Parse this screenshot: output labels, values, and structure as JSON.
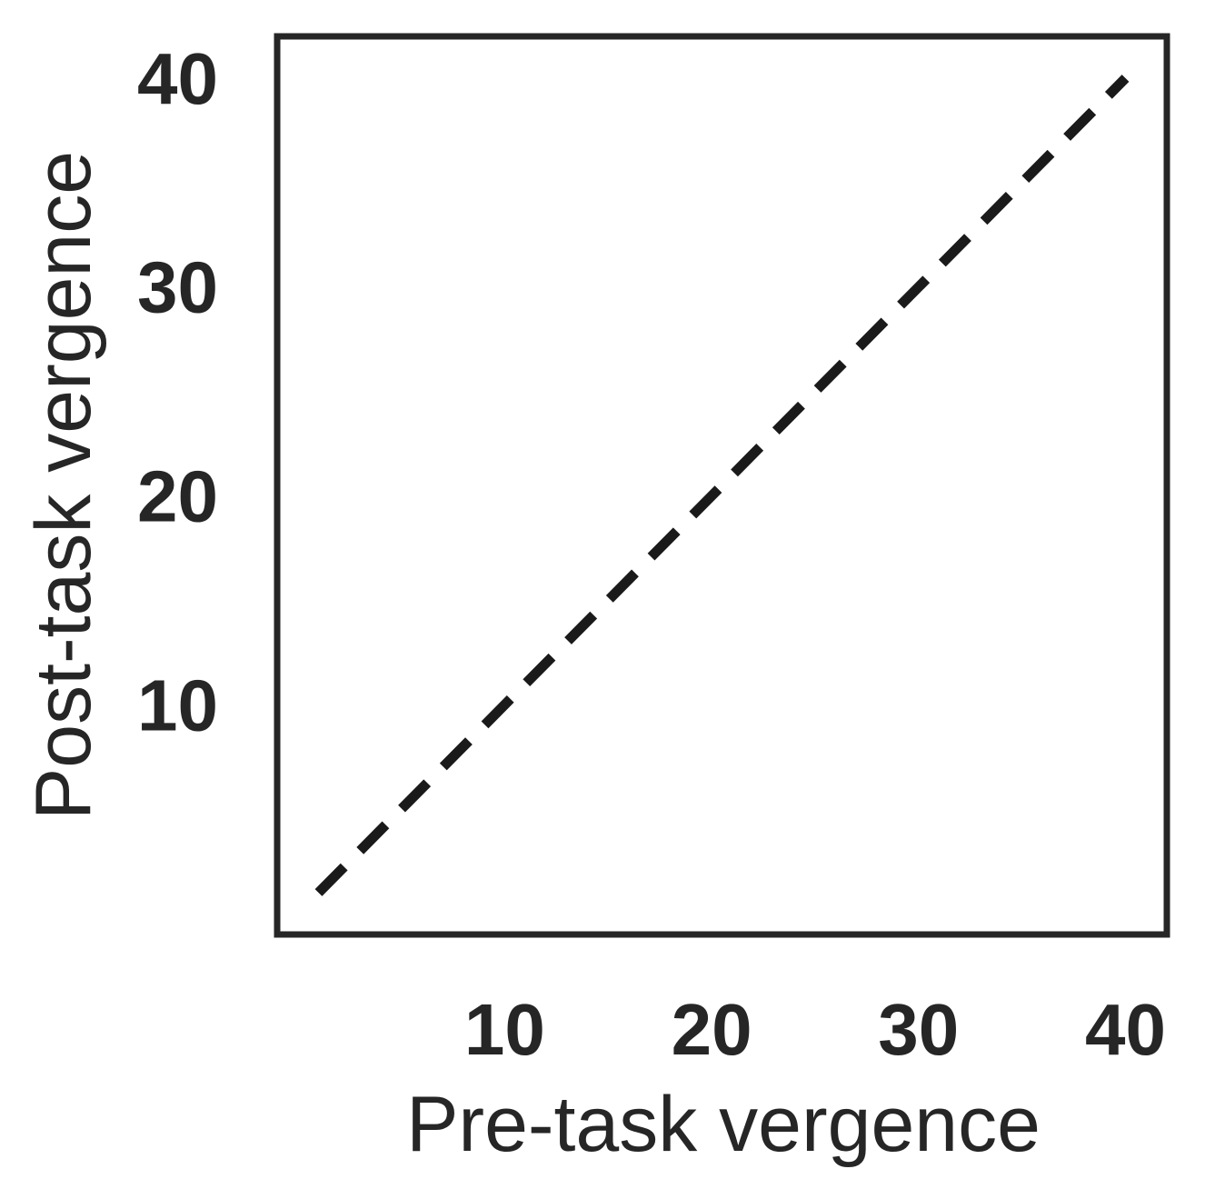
{
  "chart_data": {
    "type": "line",
    "title": "",
    "xlabel": "Pre-task vergence",
    "ylabel": "Post-task vergence",
    "xlim": [
      -1,
      42
    ],
    "ylim": [
      -1,
      42
    ],
    "xticks": [
      10,
      20,
      30,
      40
    ],
    "yticks": [
      10,
      20,
      30,
      40
    ],
    "grid": false,
    "series": [
      {
        "style": "dashed",
        "color": "#1a1a1a",
        "x": [
          1,
          40
        ],
        "y": [
          1,
          40
        ]
      }
    ]
  },
  "colors": {
    "axis": "#262626",
    "line": "#1a1a1a",
    "background": "#ffffff"
  }
}
